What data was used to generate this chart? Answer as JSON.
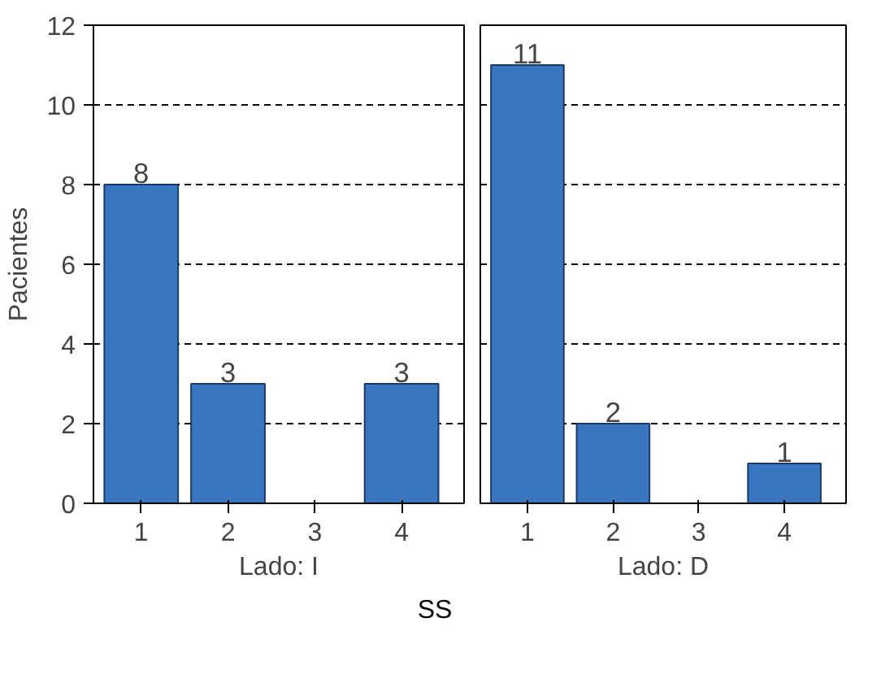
{
  "chart_data": [
    {
      "type": "bar",
      "xlabel": "Lado: I",
      "ylabel": "Pacientes",
      "categories": [
        "1",
        "2",
        "3",
        "4"
      ],
      "values": [
        8,
        3,
        null,
        3
      ],
      "value_labels": [
        "8",
        "3",
        null,
        "3"
      ],
      "color": "#3a76c0",
      "ylim": [
        0,
        12
      ],
      "yticks": [
        0,
        2,
        4,
        6,
        8,
        10,
        12
      ],
      "grid": "y",
      "annotations": [
        "SS"
      ]
    },
    {
      "type": "bar",
      "xlabel": "Lado: D",
      "categories": [
        "1",
        "2",
        "3",
        "4"
      ],
      "values": [
        11,
        2,
        null,
        1
      ],
      "value_labels": [
        "11",
        "2",
        null,
        "1"
      ],
      "color": "#3a76c0",
      "ylim": [
        0,
        12
      ],
      "yticks": [
        0,
        2,
        4,
        6,
        8,
        10,
        12
      ],
      "grid": "y",
      "tick_labels": "x"
    }
  ]
}
